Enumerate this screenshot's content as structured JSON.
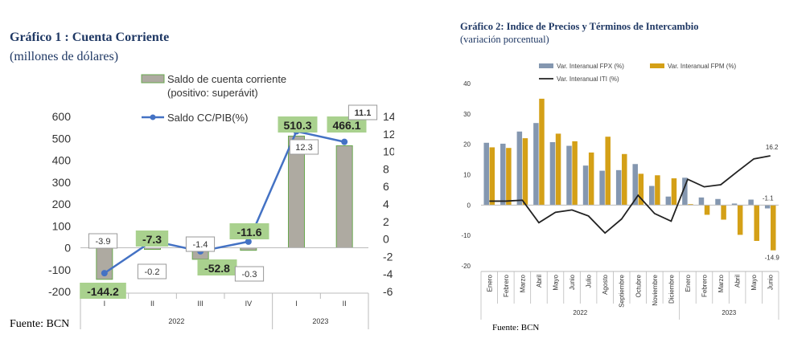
{
  "chart1": {
    "title": "Gráfico 1 : Cuenta Corriente",
    "subtitle": "(millones de dólares)",
    "source": "Fuente: BCN",
    "legend_bar": "Saldo de cuenta corriente (positivo: superávit)",
    "legend_line": "Saldo CC/PIB(%)",
    "colors": {
      "bar": "#aeaaa1",
      "bar_border": "#6aa84f",
      "line": "#4472c4",
      "label_bg": "#a9d18e"
    }
  },
  "chart2": {
    "title": "Gráfico 2:   Indice de Precios y Términos de Intercambio",
    "subtitle": "(variación porcentual)",
    "source": "Fuente: BCN",
    "colors": {
      "fpx": "#8497b0",
      "fpm": "#d4a017",
      "iti": "#222222"
    }
  },
  "chart_data": [
    {
      "type": "bar",
      "title": "Gráfico 1 : Cuenta Corriente",
      "subtitle": "(millones de dólares)",
      "categories": [
        "I",
        "II",
        "III",
        "IV",
        "I",
        "II"
      ],
      "groups": [
        {
          "label": "2022",
          "span": 4
        },
        {
          "label": "2023",
          "span": 2
        }
      ],
      "series": [
        {
          "name": "Saldo de cuenta corriente (positivo: superávit)",
          "axis": "left",
          "values": [
            -144.2,
            -7.3,
            -52.8,
            -11.6,
            510.3,
            466.1
          ],
          "labels": [
            "-144.2",
            "-7.3",
            "-52.8",
            "-11.6",
            "510.3",
            "466.1"
          ]
        },
        {
          "name": "Saldo CC/PIB(%)",
          "type": "line",
          "axis": "right",
          "values": [
            -3.9,
            -0.2,
            -1.4,
            -0.3,
            12.3,
            11.1
          ],
          "labels": [
            "-3.9",
            "-0.2",
            "-1.4",
            "-0.3",
            "12.3",
            "11.1"
          ]
        }
      ],
      "ylim": [
        -200,
        600
      ],
      "yticks": [
        "-200",
        "-100",
        "0",
        "100",
        "200",
        "300",
        "400",
        "500",
        "600"
      ],
      "y2lim": [
        -6,
        14
      ],
      "y2ticks": [
        "-6",
        "-4",
        "-2",
        "0",
        "2",
        "4",
        "6",
        "8",
        "10",
        "12",
        "14"
      ],
      "legend": "top-center",
      "grid": false
    },
    {
      "type": "bar",
      "title": "Gráfico 2:   Indice de Precios y Términos de Intercambio",
      "subtitle": "(variación porcentual)",
      "categories": [
        "Enero",
        "Febrero",
        "Marzo",
        "Abril",
        "Mayo",
        "Junio",
        "Julio",
        "Agosto",
        "Septiembre",
        "Octubre",
        "Noviembre",
        "Diciembre",
        "Enero",
        "Febrero",
        "Marzo",
        "Abril",
        "Mayo",
        "Junio"
      ],
      "groups": [
        {
          "label": "2022",
          "span": 12
        },
        {
          "label": "2023",
          "span": 6
        }
      ],
      "series": [
        {
          "name": "Var. Interanual FPX (%)",
          "values": [
            20.5,
            20.2,
            24.2,
            27.0,
            20.7,
            19.5,
            13.0,
            11.3,
            11.5,
            13.5,
            6.3,
            2.8,
            9.0,
            2.5,
            2.0,
            0.5,
            1.8,
            -1.1
          ]
        },
        {
          "name": "Var. Interanual FPM (%)",
          "values": [
            19.0,
            18.8,
            22.0,
            35.0,
            23.5,
            21.0,
            17.3,
            22.5,
            16.8,
            10.3,
            9.8,
            8.8,
            0.3,
            -3.2,
            -4.8,
            -9.8,
            -11.8,
            -14.9
          ]
        },
        {
          "name": "Var. Interanual ITI (%)",
          "type": "line",
          "values": [
            1.3,
            1.3,
            1.6,
            -5.8,
            -2.4,
            -1.6,
            -3.6,
            -9.2,
            -4.6,
            3.2,
            -2.8,
            -5.3,
            8.5,
            6.0,
            6.7,
            11.0,
            15.2,
            16.2
          ]
        }
      ],
      "annotations": [
        "16.2",
        "-1.1",
        "-14.9"
      ],
      "ylim": [
        -20,
        40
      ],
      "yticks": [
        "-20",
        "-10",
        "0",
        "10",
        "20",
        "30",
        "40"
      ],
      "legend": "top",
      "grid": false
    }
  ]
}
